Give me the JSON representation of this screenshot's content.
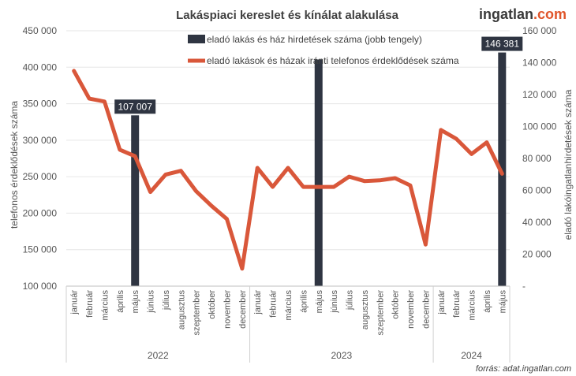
{
  "brand": {
    "part1": "ingatlan",
    "part2": ".com"
  },
  "source": "forrás: adat.ingatlan.com",
  "colors": {
    "bar": "#2f3542",
    "line": "#d9573a",
    "grid": "#e6e6e6",
    "brand_accent": "#e0552a"
  },
  "chart_data": {
    "type": "bar+line",
    "title": "Lakáspiaci kereslet és kínálat alakulása",
    "ylabel_left": "telefonos érdeklődések száma",
    "ylabel_right": "eladó lakóingatlanhirdetések száma",
    "ylim_left": [
      100000,
      450000
    ],
    "ylim_right": [
      0,
      160000
    ],
    "yticks_left": [
      "100 000",
      "150 000",
      "200 000",
      "250 000",
      "300 000",
      "350 000",
      "400 000",
      "450 000"
    ],
    "yticks_left_values": [
      100000,
      150000,
      200000,
      250000,
      300000,
      350000,
      400000,
      450000
    ],
    "yticks_right": [
      "-",
      "20 000",
      "40 000",
      "60 000",
      "80 000",
      "100 000",
      "120 000",
      "140 000",
      "160 000"
    ],
    "yticks_right_values": [
      0,
      20000,
      40000,
      60000,
      80000,
      100000,
      120000,
      140000,
      160000
    ],
    "grid": true,
    "legend_position": "top",
    "categories": [
      "január",
      "február",
      "március",
      "április",
      "május",
      "június",
      "július",
      "augusztus",
      "szeptember",
      "október",
      "november",
      "december",
      "január",
      "február",
      "március",
      "április",
      "május",
      "június",
      "július",
      "augusztus",
      "szeptember",
      "október",
      "november",
      "december",
      "január",
      "február",
      "március",
      "április",
      "május"
    ],
    "years": [
      {
        "label": "2022",
        "start": 0,
        "end": 11
      },
      {
        "label": "2023",
        "start": 12,
        "end": 23
      },
      {
        "label": "2024",
        "start": 24,
        "end": 28
      }
    ],
    "series": [
      {
        "name": "eladó lakás és ház hirdetések száma (jobb tengely)",
        "type": "bar",
        "axis": "right",
        "points": [
          {
            "index": 4,
            "value": 107007,
            "label": "107 007"
          },
          {
            "index": 16,
            "value": 142000,
            "label": ""
          },
          {
            "index": 28,
            "value": 146381,
            "label": "146 381"
          }
        ]
      },
      {
        "name": "eladó lakások és házak iránti telefonos érdeklődések száma",
        "type": "line",
        "axis": "left",
        "values": [
          395000,
          357000,
          353000,
          287000,
          278000,
          229000,
          253000,
          258000,
          230000,
          210000,
          192000,
          124000,
          262000,
          236000,
          262000,
          236000,
          236000,
          236000,
          250000,
          244000,
          245000,
          248000,
          238000,
          157000,
          314000,
          302000,
          281000,
          297000,
          254000
        ]
      }
    ]
  }
}
